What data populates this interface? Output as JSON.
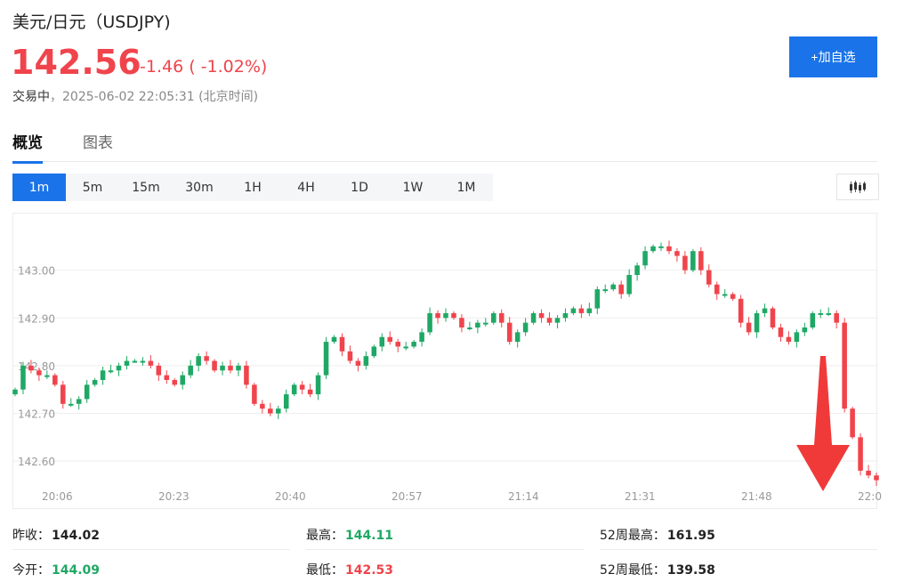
{
  "header": {
    "title": "美元/日元（USDJPY)",
    "price": "142.56",
    "change": "-1.46 ( -1.02%)",
    "status_label": "交易中",
    "status_time": "，2025-06-02 22:05:31 (北京时间)",
    "add_button": "+加自选"
  },
  "colors": {
    "up": "#1fa865",
    "down": "#f0444c",
    "accent": "#1a73e8",
    "arrow": "#f03a3a"
  },
  "tabs": [
    {
      "label": "概览",
      "active": true
    },
    {
      "label": "图表",
      "active": false
    }
  ],
  "periods": [
    {
      "label": "1m",
      "active": true
    },
    {
      "label": "5m"
    },
    {
      "label": "15m"
    },
    {
      "label": "30m"
    },
    {
      "label": "1H"
    },
    {
      "label": "4H"
    },
    {
      "label": "1D"
    },
    {
      "label": "1W"
    },
    {
      "label": "1M"
    }
  ],
  "chart_type_icon": "candlestick-icon",
  "chart_data": {
    "type": "candlestick",
    "ylim": [
      142.55,
      143.1
    ],
    "y_ticks": [
      "142.60",
      "142.70",
      "142.80",
      "142.90",
      "143.00"
    ],
    "x_tick_labels": [
      "20:06",
      "20:23",
      "20:40",
      "20:57",
      "21:14",
      "21:31",
      "21:48",
      "22:0"
    ],
    "close_series": [
      142.75,
      142.8,
      142.79,
      142.78,
      142.78,
      142.76,
      142.72,
      142.72,
      142.73,
      142.76,
      142.77,
      142.79,
      142.79,
      142.8,
      142.81,
      142.81,
      142.81,
      142.8,
      142.78,
      142.77,
      142.76,
      142.78,
      142.8,
      142.82,
      142.81,
      142.79,
      142.8,
      142.79,
      142.8,
      142.76,
      142.72,
      142.71,
      142.7,
      142.71,
      142.74,
      142.76,
      142.75,
      142.74,
      142.78,
      142.85,
      142.86,
      142.83,
      142.81,
      142.8,
      142.82,
      142.84,
      142.86,
      142.85,
      142.84,
      142.84,
      142.85,
      142.87,
      142.91,
      142.9,
      142.91,
      142.9,
      142.88,
      142.88,
      142.89,
      142.89,
      142.91,
      142.89,
      142.85,
      142.87,
      142.89,
      142.91,
      142.9,
      142.89,
      142.9,
      142.91,
      142.92,
      142.91,
      142.92,
      142.96,
      142.96,
      142.97,
      142.95,
      142.99,
      143.01,
      143.04,
      143.05,
      143.05,
      143.04,
      143.03,
      143.0,
      143.04,
      143.0,
      142.97,
      142.95,
      142.95,
      142.94,
      142.89,
      142.87,
      142.91,
      142.92,
      142.88,
      142.86,
      142.85,
      142.87,
      142.88,
      142.91,
      142.91,
      142.91,
      142.89,
      142.71,
      142.65,
      142.58,
      142.57,
      142.56
    ],
    "current": 142.56
  },
  "stats": [
    [
      {
        "label": "昨收：",
        "value": "144.02",
        "color": "#222222"
      },
      {
        "label": "最高：",
        "value": "144.11",
        "color": "#1fa865"
      },
      {
        "label": "52周最高：",
        "value": "161.95",
        "color": "#222222"
      }
    ],
    [
      {
        "label": "今开：",
        "value": "144.09",
        "color": "#1fa865"
      },
      {
        "label": "最低：",
        "value": "142.53",
        "color": "#f0444c"
      },
      {
        "label": "52周最低：",
        "value": "139.58",
        "color": "#222222"
      }
    ]
  ]
}
